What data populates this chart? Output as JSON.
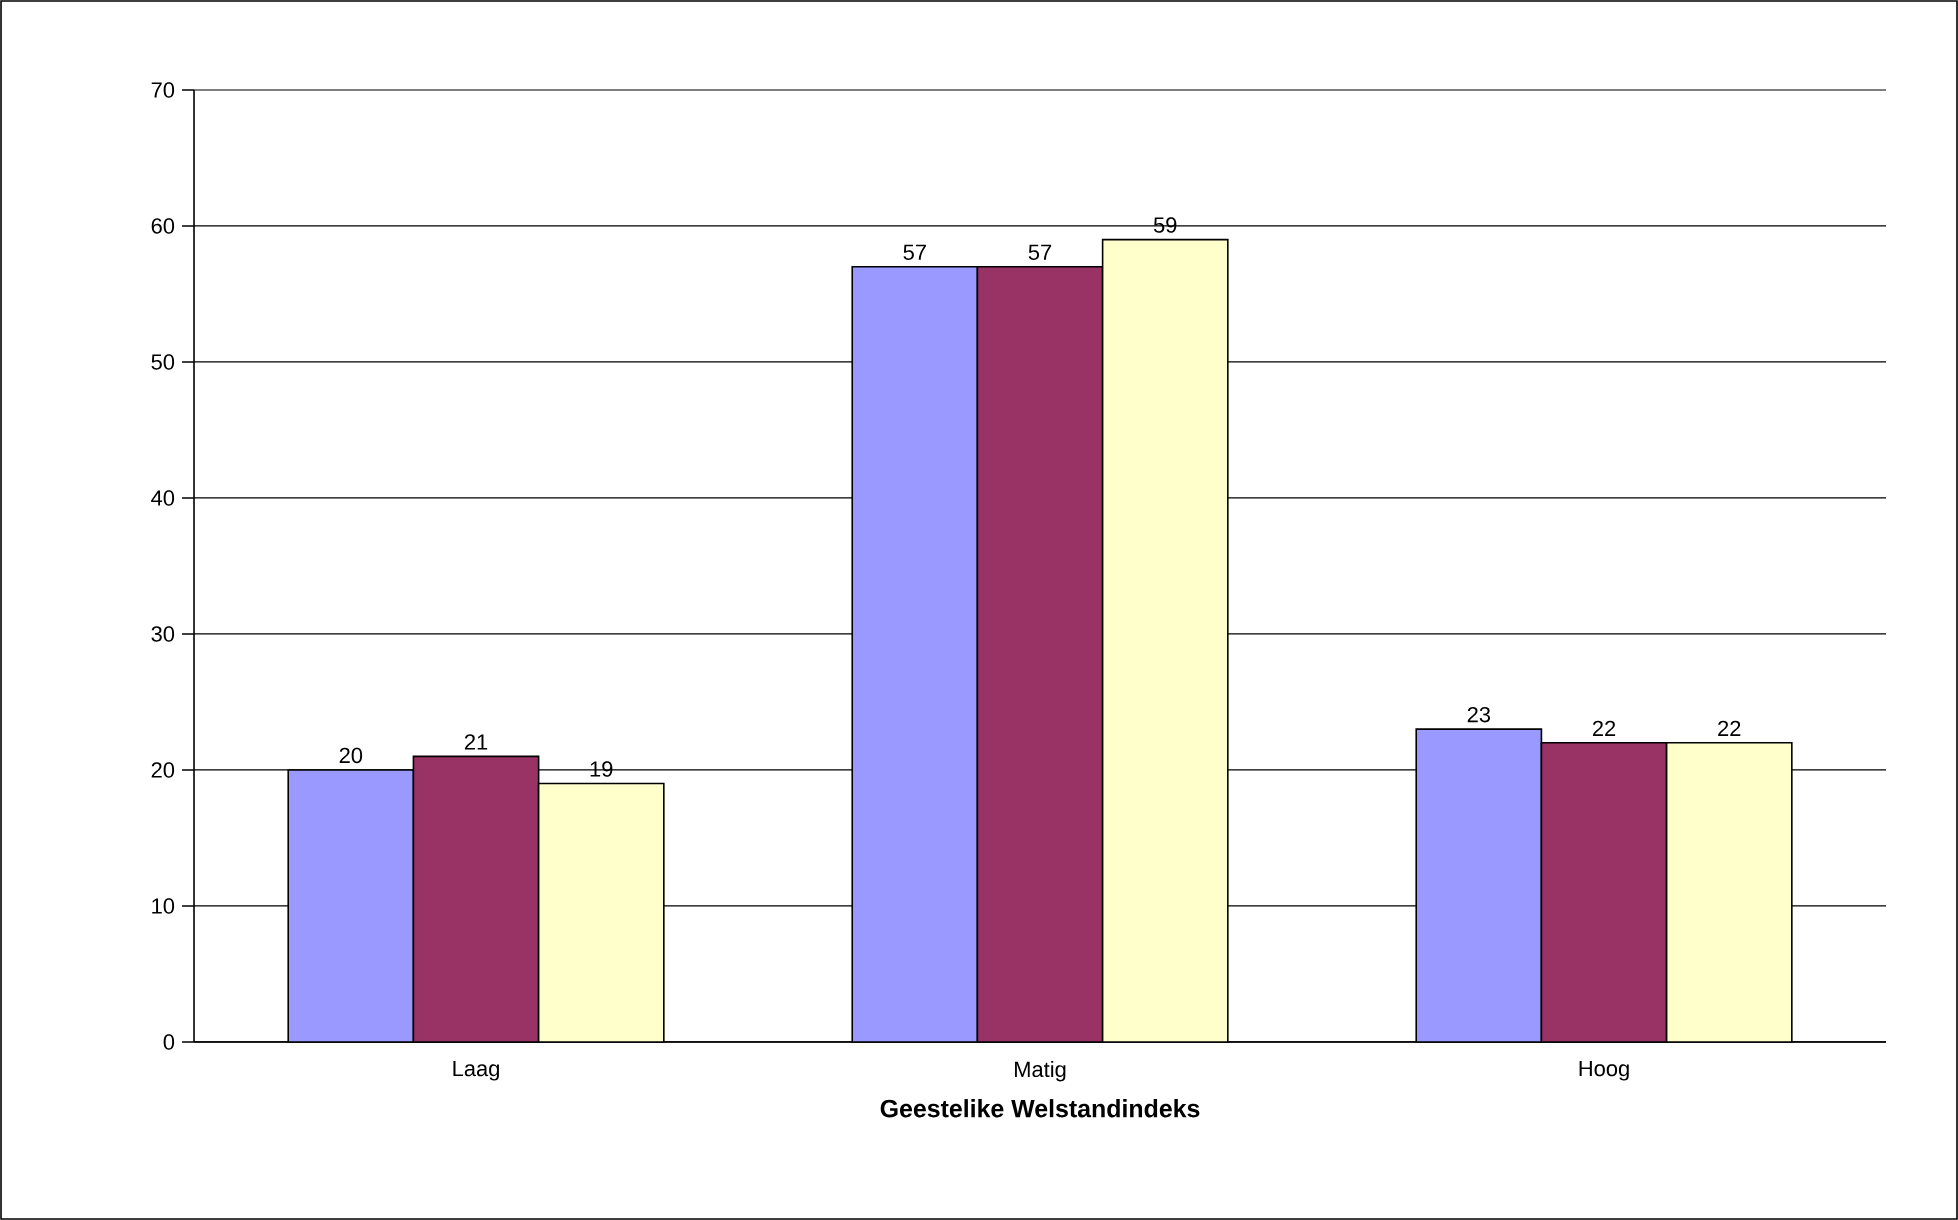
{
  "chart_data": {
    "type": "bar",
    "xlabel": "Geestelike Welstandindeks",
    "categories": [
      "Laag",
      "Matig",
      "Hoog"
    ],
    "series": [
      {
        "color": "#9999ff",
        "values": [
          20,
          57,
          23
        ]
      },
      {
        "color": "#993366",
        "values": [
          21,
          57,
          22
        ]
      },
      {
        "color": "#ffffcc",
        "values": [
          19,
          59,
          22
        ]
      }
    ],
    "ylim": [
      0,
      70
    ],
    "yticks": [
      0,
      10,
      20,
      30,
      40,
      50,
      60,
      70
    ],
    "grid": "y",
    "data_labels": true
  }
}
